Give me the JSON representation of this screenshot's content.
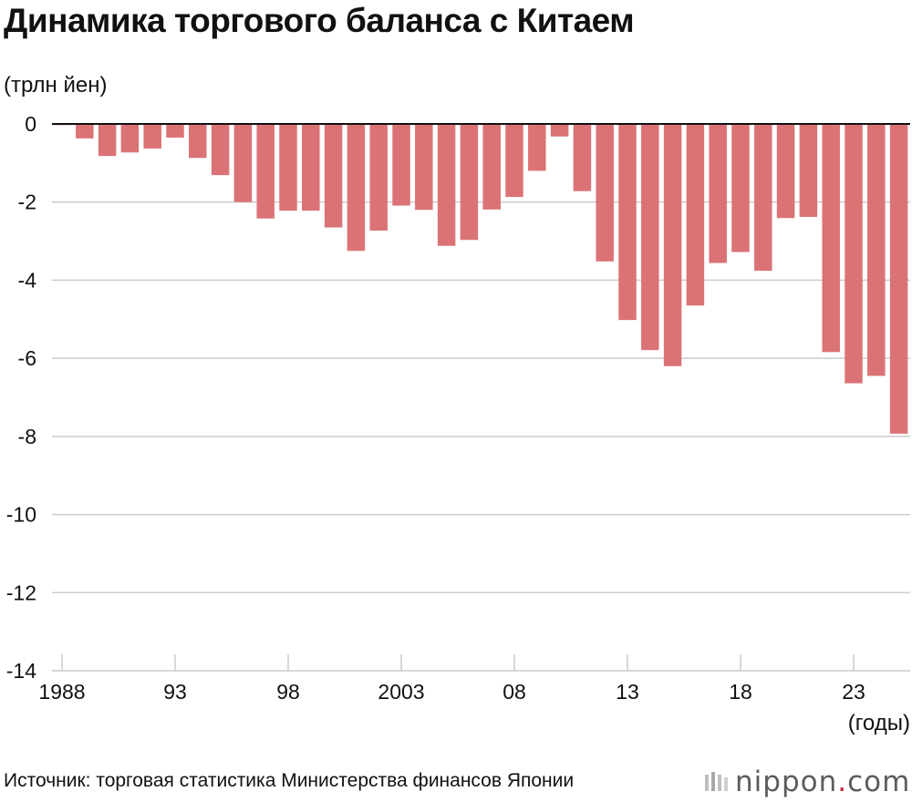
{
  "title": "Динамика торгового баланса с Китаем",
  "unit_label": "(трлн йен)",
  "x_unit_label": "(годы)",
  "source": "Источник: торговая статистика Министерства финансов Японии",
  "brand": {
    "name": "nippon",
    "dot": ".",
    "suffix": "com",
    "icon": "nippon-stripes-icon"
  },
  "colors": {
    "bar": "#db7376",
    "grid": "#cccccc",
    "zero_line": "#111111"
  },
  "chart_data": {
    "type": "bar",
    "title": "Динамика торгового баланса с Китаем",
    "ylabel": "(трлн йен)",
    "xlabel": "(годы)",
    "ylim": [
      -14,
      0
    ],
    "yticks": [
      0,
      -2,
      -4,
      -6,
      -8,
      -10,
      -12,
      -14
    ],
    "grid": true,
    "categories": [
      "1988",
      "1989",
      "1990",
      "1991",
      "1992",
      "1993",
      "1994",
      "1995",
      "1996",
      "1997",
      "1998",
      "1999",
      "2000",
      "2001",
      "2002",
      "2003",
      "2004",
      "2005",
      "2006",
      "2007",
      "2008",
      "2009",
      "2010",
      "2011",
      "2012",
      "2013",
      "2014",
      "2015",
      "2016",
      "2017",
      "2018",
      "2019",
      "2020",
      "2021",
      "2022",
      "2023",
      "2024",
      "2025"
    ],
    "xtick_labels": [
      {
        "category": "1988",
        "label": "1988"
      },
      {
        "category": "1993",
        "label": "93"
      },
      {
        "category": "1998",
        "label": "98"
      },
      {
        "category": "2003",
        "label": "2003"
      },
      {
        "category": "2008",
        "label": "08"
      },
      {
        "category": "2013",
        "label": "13"
      },
      {
        "category": "2018",
        "label": "18"
      },
      {
        "category": "2023",
        "label": "23"
      }
    ],
    "values": [
      -0.03,
      -0.37,
      -0.82,
      -0.73,
      -0.63,
      -0.35,
      -0.87,
      -1.31,
      -2.0,
      -2.42,
      -2.22,
      -2.22,
      -2.65,
      -3.25,
      -2.73,
      -2.09,
      -2.2,
      -3.12,
      -2.97,
      -2.19,
      -1.87,
      -1.2,
      -0.32,
      -1.72,
      -3.52,
      -5.02,
      -5.79,
      -6.2,
      -4.65,
      -3.56,
      -3.28,
      -3.76,
      -2.41,
      -2.38,
      -5.84,
      -6.64,
      -6.45,
      -7.93
    ]
  }
}
